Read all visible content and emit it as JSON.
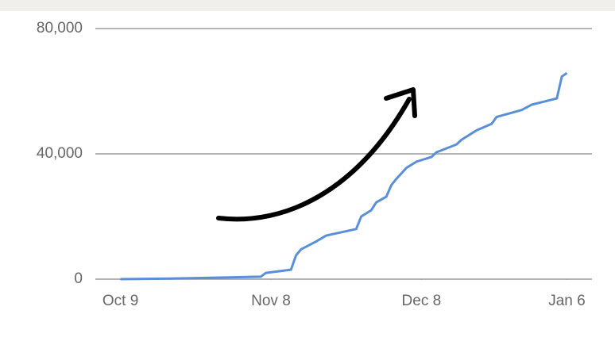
{
  "chart_data": {
    "type": "line",
    "color": "#5a8fd8",
    "grid": true,
    "x": [
      0,
      10,
      20,
      28,
      29,
      34,
      35,
      36,
      39,
      41,
      43,
      47,
      48,
      50,
      51,
      53,
      54,
      55,
      57,
      59,
      62,
      63,
      67,
      68,
      70,
      71,
      74,
      75,
      80,
      82,
      87,
      88,
      89
    ],
    "values": [
      0,
      200,
      500,
      800,
      2000,
      3000,
      7600,
      9500,
      12000,
      13900,
      14600,
      16000,
      20000,
      22000,
      24500,
      26300,
      30000,
      32000,
      35500,
      37500,
      39000,
      40500,
      43000,
      44500,
      46500,
      47500,
      49600,
      51800,
      54000,
      55700,
      57700,
      64700,
      65800
    ],
    "xlim": [
      -5,
      94
    ],
    "xticks": [
      {
        "value": 0,
        "label": "Oct 9"
      },
      {
        "value": 30,
        "label": "Nov 8"
      },
      {
        "value": 60,
        "label": "Dec 8"
      },
      {
        "value": 89,
        "label": "Jan 6"
      }
    ],
    "ylim": [
      0,
      80000
    ],
    "yticks": [
      {
        "value": 0,
        "label": "0"
      },
      {
        "value": 40000,
        "label": "40,000"
      },
      {
        "value": 80000,
        "label": "80,000"
      }
    ]
  }
}
